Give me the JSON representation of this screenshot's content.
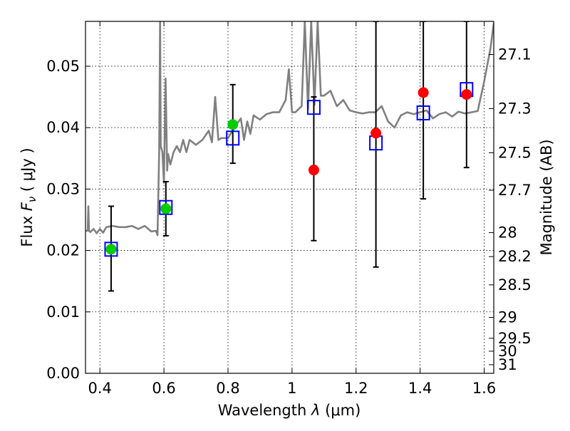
{
  "chart_data": {
    "type": "scatter",
    "xlabel": "Wavelength",
    "xlabel_symbol": "λ",
    "xlabel_unit": "(μm)",
    "ylabel": "Flux",
    "ylabel_symbol": "F",
    "ylabel_symbol_sub": "ν",
    "ylabel_unit": "( μJy )",
    "y2label": "Magnitude (AB)",
    "xlim": [
      0.355,
      1.63
    ],
    "ylim": [
      0.0,
      0.0573
    ],
    "grid": true,
    "x_ticks": [
      {
        "value": 0.4,
        "label": "0.4"
      },
      {
        "value": 0.6,
        "label": "0.6"
      },
      {
        "value": 0.8,
        "label": "0.8"
      },
      {
        "value": 1.0,
        "label": "1"
      },
      {
        "value": 1.2,
        "label": "1.2"
      },
      {
        "value": 1.4,
        "label": "1.4"
      },
      {
        "value": 1.6,
        "label": "1.6"
      }
    ],
    "y_ticks": [
      {
        "value": 0.0,
        "label": "0.00"
      },
      {
        "value": 0.01,
        "label": "0.01"
      },
      {
        "value": 0.02,
        "label": "0.02"
      },
      {
        "value": 0.03,
        "label": "0.03"
      },
      {
        "value": 0.04,
        "label": "0.04"
      },
      {
        "value": 0.05,
        "label": "0.05"
      }
    ],
    "mag_ticks": [
      {
        "flux": 0.0519,
        "label": "27.1"
      },
      {
        "flux": 0.0431,
        "label": "27.3"
      },
      {
        "flux": 0.0359,
        "label": "27.5"
      },
      {
        "flux": 0.0298,
        "label": "27.7"
      },
      {
        "flux": 0.0229,
        "label": "28"
      },
      {
        "flux": 0.019,
        "label": "28.2"
      },
      {
        "flux": 0.0144,
        "label": "28.5"
      },
      {
        "flux": 0.0091,
        "label": "29"
      },
      {
        "flux": 0.0057,
        "label": "29.5"
      },
      {
        "flux": 0.0036,
        "label": "30"
      },
      {
        "flux": 0.0014,
        "label": "31"
      }
    ],
    "series": [
      {
        "kind": "sed_model",
        "style": "line",
        "color": "#808080",
        "x": [
          0.355,
          0.362,
          0.364,
          0.366,
          0.37,
          0.38,
          0.39,
          0.4,
          0.41,
          0.42,
          0.44,
          0.46,
          0.48,
          0.5,
          0.52,
          0.54,
          0.56,
          0.575,
          0.58,
          0.585,
          0.588,
          0.59,
          0.595,
          0.6,
          0.605,
          0.61,
          0.613,
          0.62,
          0.63,
          0.64,
          0.65,
          0.66,
          0.67,
          0.68,
          0.7,
          0.72,
          0.74,
          0.75,
          0.76,
          0.77,
          0.78,
          0.8,
          0.82,
          0.84,
          0.85,
          0.86,
          0.87,
          0.88,
          0.9,
          0.92,
          0.94,
          0.96,
          0.98,
          0.99,
          1.0,
          1.01,
          1.02,
          1.03,
          1.04,
          1.05,
          1.06,
          1.07,
          1.08,
          1.09,
          1.1,
          1.12,
          1.14,
          1.16,
          1.18,
          1.2,
          1.22,
          1.24,
          1.26,
          1.28,
          1.3,
          1.32,
          1.34,
          1.36,
          1.38,
          1.4,
          1.42,
          1.44,
          1.46,
          1.48,
          1.5,
          1.52,
          1.54,
          1.56,
          1.58,
          1.6,
          1.62,
          1.63
        ],
        "y": [
          0.0232,
          0.0232,
          0.0272,
          0.0232,
          0.023,
          0.0235,
          0.0228,
          0.0235,
          0.0229,
          0.0238,
          0.024,
          0.0238,
          0.0238,
          0.024,
          0.0235,
          0.024,
          0.0231,
          0.0232,
          0.0225,
          0.036,
          0.058,
          0.037,
          0.036,
          0.031,
          0.048,
          0.033,
          0.0357,
          0.034,
          0.036,
          0.037,
          0.036,
          0.038,
          0.036,
          0.038,
          0.0372,
          0.038,
          0.0395,
          0.0376,
          0.045,
          0.038,
          0.0383,
          0.0383,
          0.04,
          0.0415,
          0.038,
          0.041,
          0.039,
          0.042,
          0.0413,
          0.0422,
          0.0425,
          0.0425,
          0.0445,
          0.0495,
          0.0425,
          0.0425,
          0.043,
          0.0435,
          0.0573,
          0.043,
          0.0573,
          0.0437,
          0.0573,
          0.0452,
          0.0452,
          0.046,
          0.0435,
          0.0445,
          0.0428,
          0.0425,
          0.0423,
          0.0425,
          0.0425,
          0.0435,
          0.041,
          0.04,
          0.042,
          0.0425,
          0.0422,
          0.0425,
          0.0428,
          0.0415,
          0.0422,
          0.0425,
          0.0418,
          0.0426,
          0.0423,
          0.0425,
          0.0427,
          0.0475,
          0.053,
          0.057
        ]
      },
      {
        "kind": "model_photometry",
        "style": "open-square",
        "color": "#0000ff",
        "x": [
          0.435,
          0.606,
          0.815,
          1.068,
          1.262,
          1.41,
          1.545
        ],
        "y": [
          0.0202,
          0.027,
          0.0383,
          0.0433,
          0.0375,
          0.0424,
          0.0462
        ]
      },
      {
        "kind": "observed_optical",
        "style": "filled-circle",
        "color": "#00cc00",
        "x": [
          0.435,
          0.606,
          0.815
        ],
        "y": [
          0.0202,
          0.0268,
          0.0405
        ],
        "err_low": [
          0.0134,
          0.0224,
          0.0342
        ],
        "err_high": [
          0.0272,
          0.0312,
          0.047
        ]
      },
      {
        "kind": "observed_nir",
        "style": "filled-circle",
        "color": "#ff0000",
        "x": [
          1.068,
          1.262,
          1.41,
          1.545
        ],
        "y": [
          0.0331,
          0.0391,
          0.0457,
          0.0454
        ],
        "err_low": [
          0.0216,
          0.0173,
          0.0284,
          0.0335
        ],
        "err_high": [
          0.045,
          0.0573,
          0.0573,
          0.0573
        ]
      }
    ]
  }
}
